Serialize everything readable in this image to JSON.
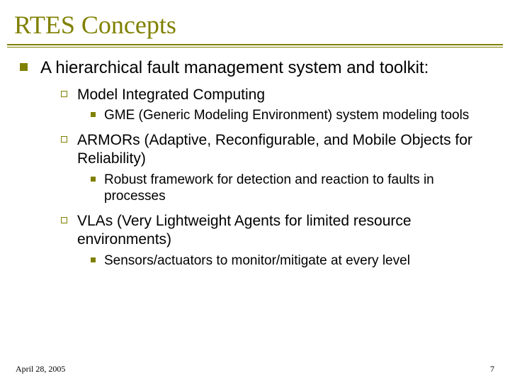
{
  "title": {
    "text": "RTES Concepts",
    "fontsize": 36,
    "color": "#808000",
    "underline_color": "#808000"
  },
  "bullets": {
    "l1_fontsize": 24,
    "l2_fontsize": 21,
    "l3_fontsize": 19,
    "bullet_color": "#808000",
    "text_color": "#000000",
    "l1_text": "A hierarchical fault management system and toolkit:",
    "items": [
      {
        "l2": "Model Integrated Computing",
        "l3": "GME (Generic Modeling Environment) system modeling tools"
      },
      {
        "l2": "ARMORs (Adaptive, Reconfigurable, and Mobile Objects for Reliability)",
        "l3": "Robust framework for detection and reaction to faults in processes"
      },
      {
        "l2": "VLAs (Very Lightweight Agents for limited resource environments)",
        "l3": "Sensors/actuators to monitor/mitigate at every level"
      }
    ]
  },
  "footer": {
    "date": "April 28, 2005",
    "page": "7",
    "fontsize": 12,
    "color": "#000000"
  },
  "background_color": "#ffffff"
}
